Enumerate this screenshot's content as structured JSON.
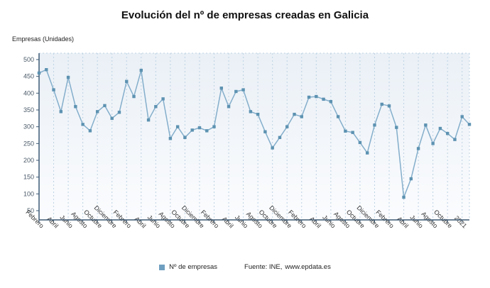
{
  "header": {
    "title": "Evolución del nº de empresas creadas en Galicia"
  },
  "axis_unit_label": "Empresas (Unidades)",
  "chart_data": {
    "type": "line",
    "title": "Evolución del nº de empresas creadas en Galicia",
    "ylabel": "Empresas (Unidades)",
    "series_name": "Nº de empresas",
    "x_tick_labels": [
      "Febrero",
      "Abril",
      "Junio",
      "Agosto",
      "Octubre",
      "Diciembre",
      "Febrero",
      "Abril",
      "Junio",
      "Agosto",
      "Octubre",
      "Diciembre",
      "Febrero",
      "Abril",
      "Junio",
      "Agosto",
      "Octubre",
      "Diciembre",
      "Febrero",
      "Abril",
      "Junio",
      "Agosto",
      "Octubre",
      "Diciembre",
      "Febrero",
      "Abril",
      "Junio",
      "Agosto",
      "Octubre",
      "2021"
    ],
    "x_tick_every": 2,
    "values": [
      460,
      470,
      410,
      345,
      447,
      360,
      307,
      288,
      345,
      363,
      325,
      343,
      435,
      390,
      468,
      320,
      360,
      383,
      265,
      300,
      268,
      290,
      297,
      288,
      300,
      415,
      360,
      405,
      410,
      345,
      337,
      285,
      237,
      268,
      300,
      337,
      330,
      388,
      390,
      382,
      375,
      330,
      287,
      283,
      253,
      222,
      305,
      367,
      362,
      298,
      90,
      145,
      235,
      305,
      250,
      295,
      280,
      262,
      330,
      307
    ],
    "ylim": [
      50,
      500
    ],
    "yticks": [
      50,
      100,
      150,
      200,
      250,
      300,
      350,
      400,
      450,
      500
    ],
    "grid": true,
    "legend_position": "bottom",
    "line_color": "#84aecb",
    "marker_color": "#5d92b1",
    "grid_color": "#bdd2e3",
    "axis_color": "#3d5a75"
  },
  "legend": {
    "label": "Nº de empresas",
    "swatch_color": "#6f9fc0"
  },
  "footer": {
    "source_label": "Fuente: INE,",
    "source_link": "www.epdata.es"
  }
}
